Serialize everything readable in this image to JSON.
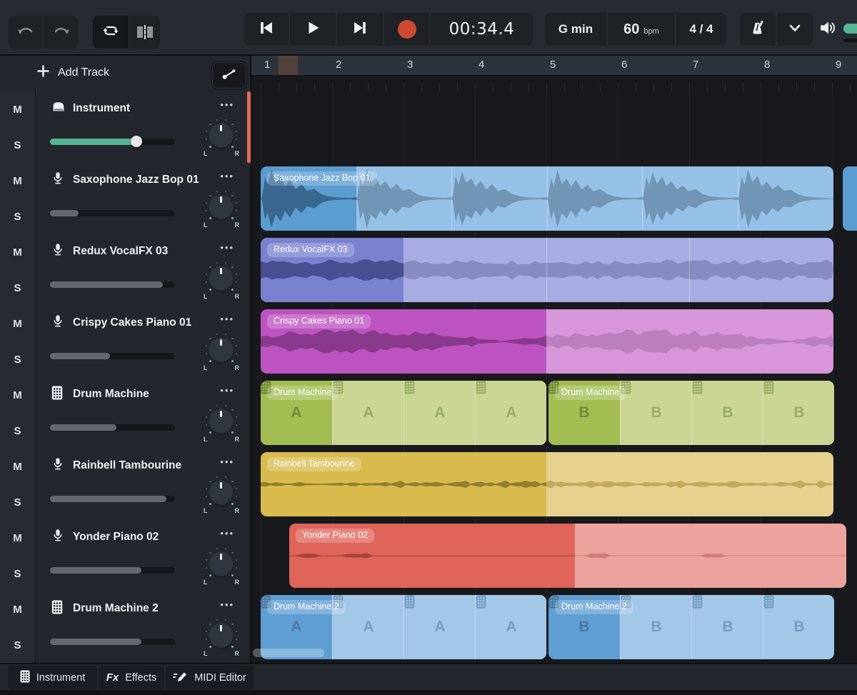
{
  "toolbar": {
    "time_display": "00:34.4",
    "key": "G min",
    "tempo": "60",
    "tempo_unit": "bpm",
    "time_signature": "4 / 4"
  },
  "track_panel": {
    "add_track_label": "Add Track",
    "mute_label": "M",
    "solo_label": "S",
    "pan_left": "L",
    "pan_right": "R",
    "menu_glyph": "•••"
  },
  "ruler": {
    "bars": [
      "1",
      "2",
      "3",
      "4",
      "5",
      "6",
      "7",
      "8",
      "9"
    ]
  },
  "tracks": [
    {
      "name": "Instrument",
      "icon": "piano",
      "selected": true,
      "volume": 69,
      "regions": []
    },
    {
      "name": "Saxophone Jazz Bop 01",
      "icon": "mic",
      "selected": false,
      "volume": 23,
      "regions": [
        {
          "label": "Saxophone Jazz Bop 01",
          "scheme": "blue",
          "start_bar": 1,
          "length_bars": 8.02,
          "head_bars": 1.335,
          "wave": "bursts"
        },
        {
          "label": "",
          "scheme": "blue",
          "start_bar": 9.15,
          "length_bars": 0.4,
          "head_bars": 0.4,
          "wave": "none"
        }
      ]
    },
    {
      "name": "Redux VocalFX 03",
      "icon": "mic",
      "selected": false,
      "volume": 90,
      "regions": [
        {
          "label": "Redux VocalFX 03",
          "scheme": "purple",
          "start_bar": 1,
          "length_bars": 8.02,
          "head_bars": 2,
          "wave": "blob"
        }
      ]
    },
    {
      "name": "Crispy Cakes Piano 01",
      "icon": "mic",
      "selected": false,
      "volume": 48,
      "regions": [
        {
          "label": "Crispy Cakes Piano 01",
          "scheme": "magenta",
          "start_bar": 1,
          "length_bars": 8.02,
          "head_bars": 4,
          "wave": "blob2"
        }
      ]
    },
    {
      "name": "Drum Machine",
      "icon": "pads",
      "selected": false,
      "volume": 53,
      "regions": [
        {
          "label": "Drum Machine",
          "scheme": "green",
          "start_bar": 1,
          "length_bars": 4,
          "cells": 4,
          "cell_letter": "A"
        },
        {
          "label": "Drum Machine",
          "scheme": "green",
          "start_bar": 5.03,
          "length_bars": 4,
          "cells": 4,
          "cell_letter": "B"
        }
      ]
    },
    {
      "name": "Rainbell Tambourine",
      "icon": "mic",
      "selected": false,
      "volume": 93,
      "regions": [
        {
          "label": "Rainbell Tambourine",
          "scheme": "yellow",
          "start_bar": 1,
          "length_bars": 8.02,
          "head_bars": 4,
          "wave": "dashes"
        }
      ]
    },
    {
      "name": "Yonder Piano 02",
      "icon": "mic",
      "selected": false,
      "volume": 73,
      "regions": [
        {
          "label": "Yonder Piano 02",
          "scheme": "red",
          "start_bar": 1.4,
          "length_bars": 7.8,
          "head_bars": 4,
          "wave": "sparse"
        }
      ]
    },
    {
      "name": "Drum Machine 2",
      "icon": "pads",
      "selected": false,
      "volume": 73,
      "regions": [
        {
          "label": "Drum Machine 2",
          "scheme": "blue2",
          "start_bar": 1,
          "length_bars": 4,
          "cells": 4,
          "cell_letter": "A"
        },
        {
          "label": "Drum Machine 2",
          "scheme": "blue2",
          "start_bar": 5.03,
          "length_bars": 4,
          "cells": 4,
          "cell_letter": "B"
        }
      ]
    }
  ],
  "bottom_bar": {
    "instrument": "Instrument",
    "effects": "Effects",
    "effects_icon": "Fx",
    "midi": "MIDI Editor"
  },
  "colors": {
    "accent": "#55b693",
    "record": "#ce4a33",
    "selected_strip": "#e5695e",
    "slider_gray": "#62686e",
    "schemes": {
      "blue": {
        "head": "#5b9cd1",
        "body": "#95c1e6",
        "wave_head": "#3a678f",
        "wave_body": "#7095b5",
        "icon": "#3f6e99"
      },
      "purple": {
        "head": "#7a81d1",
        "body": "#a8ace2",
        "wave_head": "#4a4f91",
        "wave_body": "#878bc1",
        "icon": "#4a4f91"
      },
      "magenta": {
        "head": "#bd53c0",
        "body": "#d696d8",
        "wave_head": "#8a3a8d",
        "wave_body": "#bc7fbe",
        "icon": "#8a3a8d"
      },
      "green": {
        "head": "#a3bd53",
        "body": "#c9d694",
        "wave_head": "#6d8536",
        "wave_body": "#9aad62",
        "icon": "#6d8536"
      },
      "yellow": {
        "head": "#d8bb4c",
        "body": "#e6d28e",
        "wave_head": "#947e2e",
        "wave_body": "#c1aa59",
        "icon": "#947e2e"
      },
      "red": {
        "head": "#df645a",
        "body": "#eca39d",
        "wave_head": "#a4443d",
        "wave_body": "#d07d76",
        "icon": "#a4443d"
      },
      "blue2": {
        "head": "#5f9ed3",
        "body": "#a2c7e7",
        "wave_head": "#48769f",
        "wave_body": "#7ba3c8",
        "icon": "#48769f"
      }
    }
  }
}
